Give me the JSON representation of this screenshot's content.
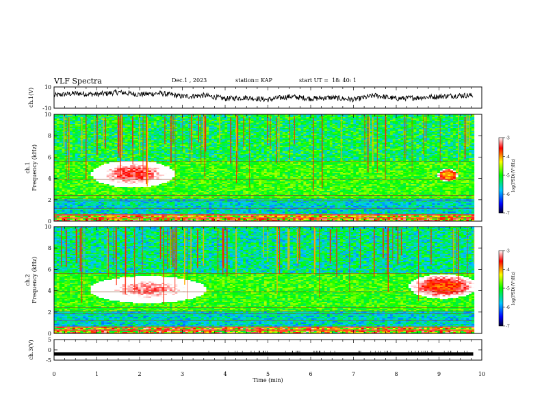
{
  "header": {
    "title": "VLF Spectra",
    "date": "Dec.1 , 2023",
    "station": "station= KAP",
    "start": "start UT =  18: 40: 1"
  },
  "colors": {
    "spectrum_low": "#0000ff",
    "spectrum_mid": "#00ff00",
    "spectrum_high": "#ff0000",
    "background": "#ffffff",
    "axes": "#000000"
  },
  "chart_data": [
    {
      "type": "line",
      "id": "ch1_waveform",
      "ylabel": "ch.1(V)",
      "ylim": [
        -10,
        10
      ],
      "yticks": [
        "10",
        "-10"
      ],
      "x": [
        0,
        0.5,
        1,
        1.5,
        2,
        2.5,
        3,
        3.5,
        4,
        4.5,
        5,
        5.5,
        6,
        6.5,
        7,
        7.5,
        8,
        8.5,
        9,
        9.5,
        9.8
      ],
      "values": [
        2,
        4,
        3,
        5,
        3,
        4,
        1,
        2,
        -1,
        0,
        -2,
        1,
        -1,
        0,
        -2,
        2,
        -1,
        0,
        1,
        2,
        2
      ]
    },
    {
      "type": "heatmap",
      "id": "ch1_spectrogram",
      "ylabel": "ch.1\nFrequency (kHz)",
      "ylim": [
        0,
        10
      ],
      "yticks": [
        "0",
        "2",
        "4",
        "6",
        "8",
        "10"
      ],
      "colorbar": {
        "label": "log(PSD)(V²/Hz)",
        "range": [
          -7,
          -3
        ],
        "ticks": [
          "-3",
          "-4",
          "-5",
          "-6",
          "-7"
        ]
      },
      "features": [
        {
          "name": "intense band",
          "time_min": [
            1.0,
            2.7
          ],
          "freq_khz": [
            3.3,
            5.5
          ],
          "log_psd": -3.5
        },
        {
          "name": "weak band",
          "time_min": [
            9.0,
            9.4
          ],
          "freq_khz": [
            3.8,
            4.8
          ],
          "log_psd": -4.2
        }
      ]
    },
    {
      "type": "heatmap",
      "id": "ch2_spectrogram",
      "ylabel": "ch.2\nFrequency (kHz)",
      "ylim": [
        0,
        10
      ],
      "yticks": [
        "0",
        "2",
        "4",
        "6",
        "8",
        "10"
      ],
      "colorbar": {
        "label": "log(PSD)(V²/Hz)",
        "range": [
          -7,
          -3
        ],
        "ticks": [
          "-3",
          "-4",
          "-5",
          "-6",
          "-7"
        ]
      },
      "features": [
        {
          "name": "intense band",
          "time_min": [
            1.0,
            3.4
          ],
          "freq_khz": [
            3.0,
            5.2
          ],
          "log_psd": -3.3
        },
        {
          "name": "secondary band",
          "time_min": [
            8.4,
            9.8
          ],
          "freq_khz": [
            3.4,
            5.4
          ],
          "log_psd": -3.8
        }
      ]
    },
    {
      "type": "line",
      "id": "ch3_waveform",
      "ylabel": "ch.3(V)",
      "ylim": [
        -5,
        5
      ],
      "yticks": [
        "5",
        "0",
        "-5"
      ],
      "x": [
        0,
        9.8
      ],
      "values": [
        -2,
        -2
      ]
    }
  ],
  "xaxis": {
    "label": "Time (min)",
    "range": [
      0,
      10
    ],
    "ticks": [
      "0",
      "1",
      "2",
      "3",
      "4",
      "5",
      "6",
      "7",
      "8",
      "9",
      "10"
    ]
  }
}
